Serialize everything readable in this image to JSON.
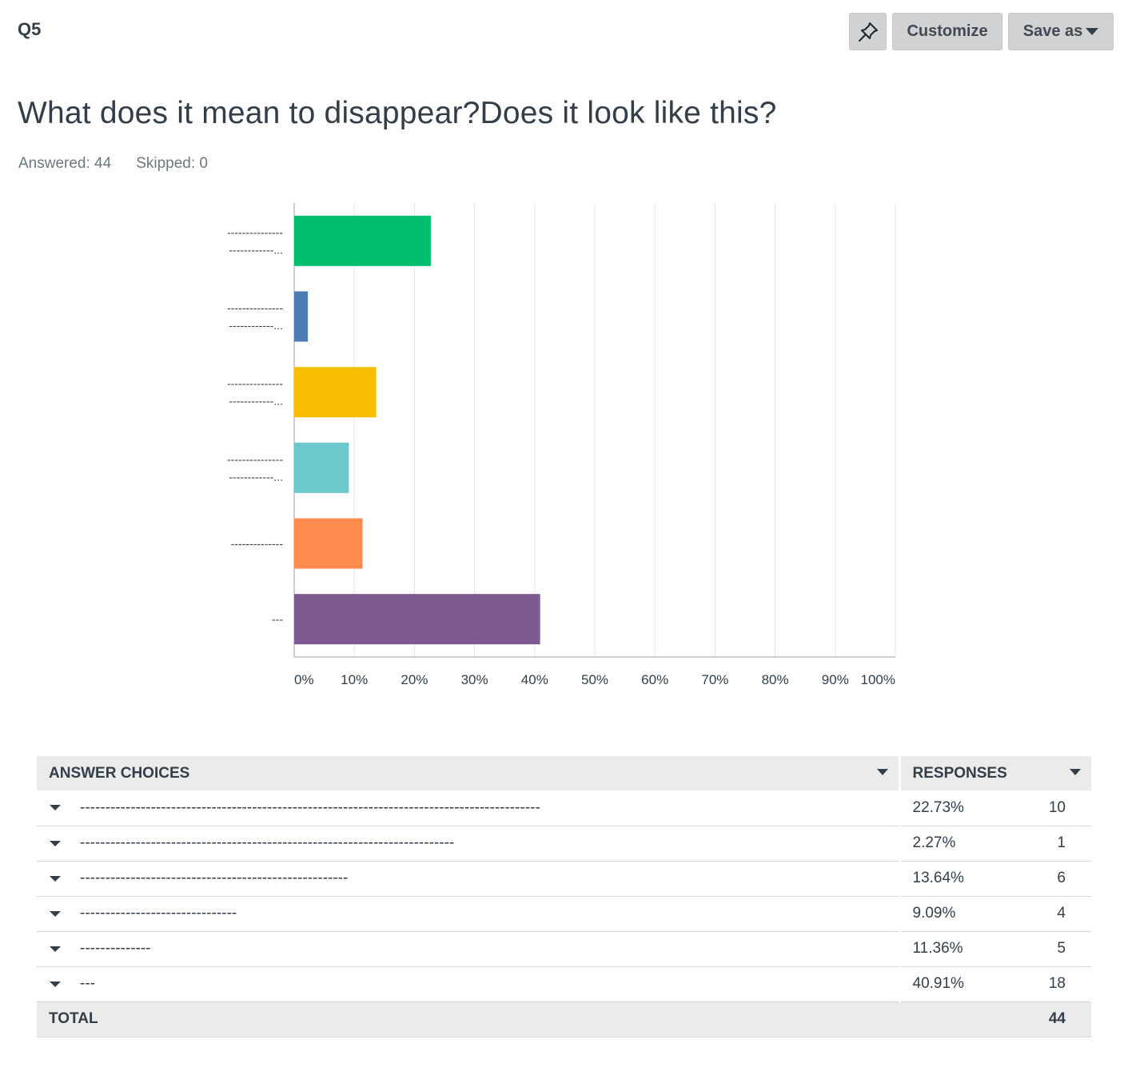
{
  "header": {
    "question_number": "Q5",
    "pin_icon": "pin-icon",
    "customize_label": "Customize",
    "save_as_label": "Save as"
  },
  "question": {
    "title": "What does it mean to disappear?Does it look like this?",
    "answered": "Answered: 44",
    "skipped": "Skipped: 0"
  },
  "colors": {
    "bars": [
      "#00bf6f",
      "#507cb6",
      "#f9be00",
      "#6bc8cd",
      "#ff8b4f",
      "#7d5b91"
    ],
    "grid": "#e6e6e6",
    "axis": "#bfbfbf"
  },
  "chart_data": {
    "type": "bar",
    "orientation": "horizontal",
    "categories": [
      [
        "---------------",
        "------------..."
      ],
      [
        "---------------",
        "------------..."
      ],
      [
        "---------------",
        "------------..."
      ],
      [
        "---------------",
        "------------..."
      ],
      [
        "--------------"
      ],
      [
        "---"
      ]
    ],
    "values": [
      22.73,
      2.27,
      13.64,
      9.09,
      11.36,
      40.91
    ],
    "xlim": [
      0,
      100
    ],
    "xticks": [
      0,
      10,
      20,
      30,
      40,
      50,
      60,
      70,
      80,
      90,
      100
    ],
    "xtick_labels": [
      "0%",
      "10%",
      "20%",
      "30%",
      "40%",
      "50%",
      "60%",
      "70%",
      "80%",
      "90%",
      "100%"
    ],
    "grid": true,
    "title": "",
    "xlabel": "",
    "ylabel": ""
  },
  "table": {
    "col_choices": "ANSWER CHOICES",
    "col_responses": "RESPONSES",
    "rows": [
      {
        "choice": "-------------------------------------------------------------------------------------------",
        "pct": "22.73%",
        "count": "10"
      },
      {
        "choice": "--------------------------------------------------------------------------",
        "pct": "2.27%",
        "count": "1"
      },
      {
        "choice": "-----------------------------------------------------",
        "pct": "13.64%",
        "count": "6"
      },
      {
        "choice": "-------------------------------",
        "pct": "9.09%",
        "count": "4"
      },
      {
        "choice": "--------------",
        "pct": "11.36%",
        "count": "5"
      },
      {
        "choice": "---",
        "pct": "40.91%",
        "count": "18"
      }
    ],
    "total_label": "TOTAL",
    "total_count": "44"
  }
}
